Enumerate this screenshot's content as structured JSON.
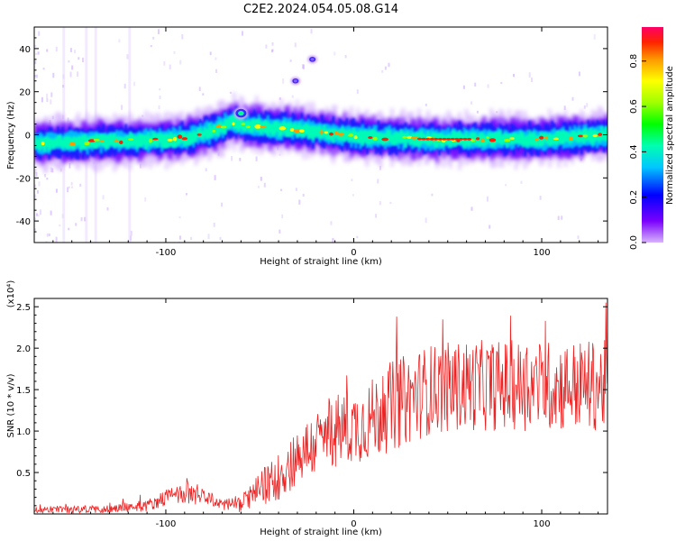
{
  "title": "C2E2.2024.054.05.08.G14",
  "chart_data": [
    {
      "type": "heatmap",
      "xlabel": "Height of straight line (km)",
      "ylabel": "Frequency (Hz)",
      "xlim": [
        -170,
        135
      ],
      "ylim": [
        -50,
        50
      ],
      "xticks": [
        -100,
        0,
        100
      ],
      "yticks": [
        -40,
        -20,
        0,
        20,
        40
      ],
      "colorbar": {
        "label": "Normalized spectral amplitude",
        "range": [
          0.0,
          0.95
        ],
        "ticks": [
          0.0,
          0.2,
          0.4,
          0.6,
          0.8
        ],
        "colormap": "rainbow"
      },
      "ridge": {
        "x": [
          -170,
          -150,
          -130,
          -110,
          -90,
          -75,
          -65,
          -55,
          -45,
          -35,
          -25,
          -15,
          -5,
          5,
          20,
          40,
          60,
          80,
          100,
          120,
          135
        ],
        "freq": [
          -4,
          -3.5,
          -3,
          -2.5,
          -1.5,
          2,
          6,
          4,
          3,
          3,
          2,
          1,
          0,
          -1,
          -1.5,
          -2,
          -2,
          -2,
          -2,
          -1,
          0
        ]
      },
      "features": [
        {
          "x": -60,
          "freq": 10
        },
        {
          "x": -31,
          "freq": 25
        },
        {
          "x": -22,
          "freq": 35
        }
      ]
    },
    {
      "type": "line",
      "xlabel": "Height of straight line (km)",
      "ylabel": "SNR (10 * v/v)",
      "scale_label": "(x10⁴)",
      "xlim": [
        -170,
        135
      ],
      "ylim": [
        0,
        2.6
      ],
      "xticks": [
        -100,
        0,
        100
      ],
      "yticks": [
        0.5,
        1.0,
        1.5,
        2.0,
        2.5
      ],
      "color": "#ee2222",
      "envelope": {
        "x": [
          -170,
          -130,
          -110,
          -100,
          -90,
          -80,
          -70,
          -60,
          -50,
          -40,
          -30,
          -20,
          -10,
          0,
          10,
          20,
          30,
          40,
          60,
          80,
          100,
          120,
          135
        ],
        "mean": [
          0.05,
          0.06,
          0.1,
          0.2,
          0.25,
          0.2,
          0.12,
          0.12,
          0.3,
          0.45,
          0.7,
          0.85,
          1.0,
          1.05,
          1.15,
          1.3,
          1.4,
          1.5,
          1.55,
          1.55,
          1.55,
          1.55,
          1.55
        ],
        "amplitude": [
          0.04,
          0.05,
          0.07,
          0.1,
          0.12,
          0.1,
          0.08,
          0.1,
          0.2,
          0.3,
          0.35,
          0.4,
          0.45,
          0.45,
          0.5,
          0.55,
          0.55,
          0.55,
          0.55,
          0.55,
          0.55,
          0.55,
          0.55
        ]
      }
    }
  ]
}
